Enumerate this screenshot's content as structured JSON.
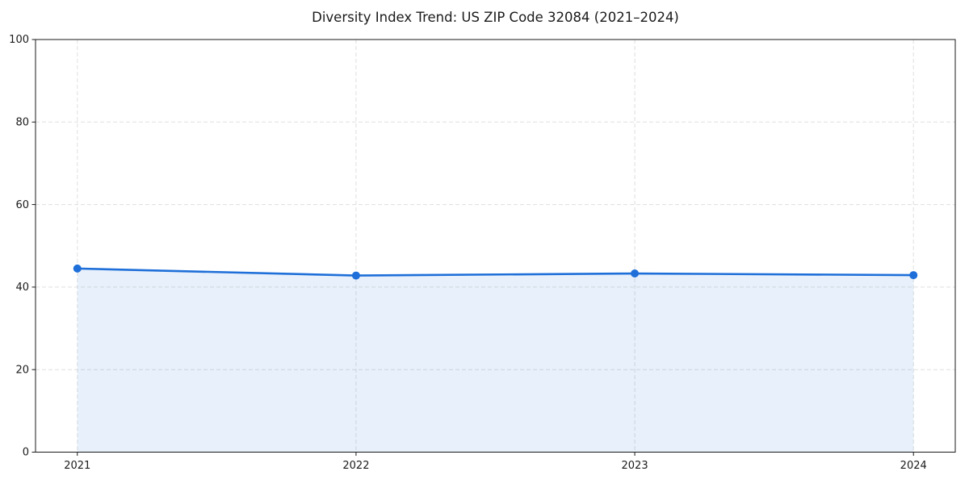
{
  "chart_data": {
    "type": "line",
    "area_fill": true,
    "area_fill_opacity": 0.1,
    "title": "Diversity Index Trend: US ZIP Code 32084 (2021–2024)",
    "x": [
      2021,
      2022,
      2023,
      2024
    ],
    "categories": [
      "2021",
      "2022",
      "2023",
      "2024"
    ],
    "series": [
      {
        "name": "Diversity Index",
        "values": [
          44.5,
          42.8,
          43.3,
          42.9
        ]
      }
    ],
    "xlabel": "",
    "ylabel": "",
    "ylim": [
      0,
      100
    ],
    "yticks": [
      0,
      20,
      40,
      60,
      80,
      100
    ],
    "grid": "dashed",
    "legend": "none",
    "marker": "circle",
    "colors": {
      "line": "#1e6fd9",
      "marker": "#1e6fd9",
      "gridline": "#dfdfdf",
      "axis": "#1a1a1a",
      "text": "#1a1a1a",
      "background": "#ffffff"
    }
  }
}
